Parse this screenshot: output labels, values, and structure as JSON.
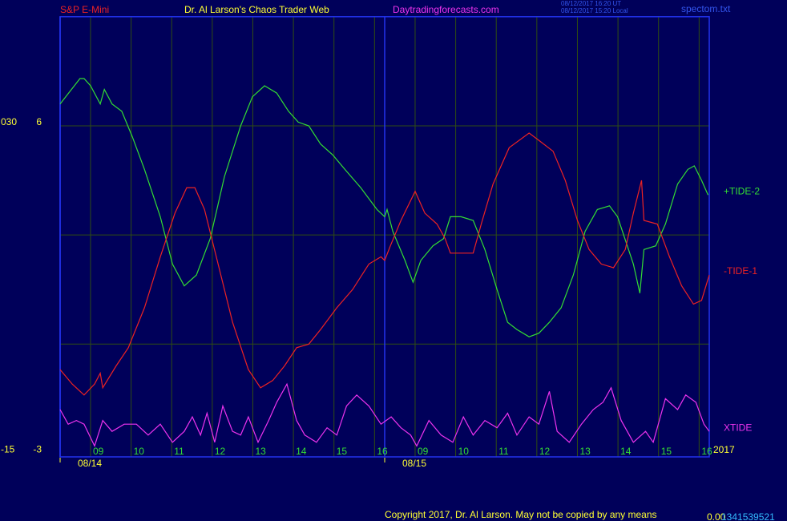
{
  "chart_data": {
    "type": "line",
    "header": {
      "symbol": "S&P E-Mini",
      "site_title": "Dr. Al Larson's Chaos Trader Web",
      "url": "Daytradingforecasts.com",
      "timestamp_ut": "08/12/2017 16:20 UT",
      "timestamp_local": "08/12/2017 15:20 Local",
      "file": "spectom.txt"
    },
    "footer": {
      "copyright": "Copyright 2017, Dr. Al Larson. May not be copied by any means",
      "counter_a": "0.00",
      "counter_b": "1341539521"
    },
    "year_label": "2017",
    "xlim": [
      0,
      16
    ],
    "xticks": [
      {
        "value": 0.75,
        "label": "09"
      },
      {
        "value": 1.75,
        "label": "10"
      },
      {
        "value": 2.75,
        "label": "11"
      },
      {
        "value": 3.75,
        "label": "12"
      },
      {
        "value": 4.75,
        "label": "13"
      },
      {
        "value": 5.75,
        "label": "14"
      },
      {
        "value": 6.75,
        "label": "15"
      },
      {
        "value": 7.75,
        "label": "16"
      },
      {
        "value": 8.75,
        "label": "09"
      },
      {
        "value": 9.75,
        "label": "10"
      },
      {
        "value": 10.75,
        "label": "11"
      },
      {
        "value": 11.75,
        "label": "12"
      },
      {
        "value": 12.75,
        "label": "13"
      },
      {
        "value": 13.75,
        "label": "14"
      },
      {
        "value": 14.75,
        "label": "15"
      },
      {
        "value": 15.75,
        "label": "16"
      }
    ],
    "day_labels": [
      {
        "value": 0,
        "label": "08/14"
      },
      {
        "value": 8,
        "label": "08/15"
      }
    ],
    "ylim": [
      -3.1,
      9
    ],
    "yticks": [
      6,
      -3
    ],
    "price_labels": [
      "030",
      "-15"
    ],
    "grid_y": [
      0,
      3,
      6
    ],
    "grid": true,
    "series": [
      {
        "name": "+TIDE-2",
        "color": "#33dd33",
        "x": [
          0,
          0.49,
          0.59,
          0.75,
          0.99,
          1.09,
          1.28,
          1.52,
          1.78,
          2.08,
          2.47,
          2.77,
          3.06,
          3.36,
          3.7,
          4.05,
          4.45,
          4.74,
          5.04,
          5.34,
          5.63,
          5.87,
          6.13,
          6.42,
          6.72,
          7.02,
          7.41,
          7.81,
          8,
          8.06,
          8.2,
          8.5,
          8.7,
          8.89,
          9.19,
          9.45,
          9.62,
          9.88,
          10.18,
          10.47,
          10.77,
          11.03,
          11.26,
          11.56,
          11.8,
          12.06,
          12.35,
          12.65,
          12.94,
          13.24,
          13.54,
          13.74,
          14.13,
          14.29,
          14.39,
          14.68,
          14.92,
          15.22,
          15.47,
          15.63,
          15.81,
          15.97
        ],
        "values": [
          6.6,
          7.3,
          7.3,
          7.1,
          6.6,
          7.0,
          6.6,
          6.4,
          5.7,
          4.8,
          3.5,
          2.2,
          1.6,
          1.9,
          2.9,
          4.6,
          6.0,
          6.8,
          7.1,
          6.9,
          6.4,
          6.1,
          6.0,
          5.5,
          5.2,
          4.8,
          4.3,
          3.7,
          3.5,
          3.7,
          3.1,
          2.3,
          1.7,
          2.3,
          2.7,
          2.9,
          3.5,
          3.5,
          3.4,
          2.6,
          1.5,
          0.6,
          0.4,
          0.2,
          0.3,
          0.6,
          1.0,
          1.9,
          3.1,
          3.7,
          3.8,
          3.5,
          2.2,
          1.4,
          2.6,
          2.7,
          3.3,
          4.4,
          4.8,
          4.9,
          4.5,
          4.1
        ]
      },
      {
        "name": "-TIDE-1",
        "color": "#ee2222",
        "x": [
          0,
          0.3,
          0.59,
          0.85,
          0.99,
          1.05,
          1.38,
          1.68,
          2.08,
          2.47,
          2.83,
          3.12,
          3.32,
          3.56,
          3.85,
          4.25,
          4.64,
          4.94,
          5.24,
          5.53,
          5.83,
          6.13,
          6.42,
          6.82,
          7.21,
          7.61,
          7.91,
          8,
          8.14,
          8.4,
          8.75,
          8.99,
          9.29,
          9.49,
          9.62,
          10.18,
          10.38,
          10.67,
          10.87,
          11.07,
          11.56,
          11.8,
          12.15,
          12.45,
          12.75,
          13.04,
          13.34,
          13.64,
          13.93,
          14.13,
          14.33,
          14.39,
          14.72,
          15.02,
          15.32,
          15.61,
          15.81,
          16
        ],
        "values": [
          -0.7,
          -1.1,
          -1.4,
          -1.1,
          -0.8,
          -1.2,
          -0.6,
          -0.1,
          1.0,
          2.4,
          3.6,
          4.3,
          4.3,
          3.7,
          2.4,
          0.6,
          -0.7,
          -1.2,
          -1.0,
          -0.6,
          -0.1,
          0.0,
          0.4,
          1.0,
          1.5,
          2.2,
          2.4,
          2.3,
          2.7,
          3.4,
          4.2,
          3.6,
          3.3,
          2.9,
          2.5,
          2.5,
          3.3,
          4.4,
          4.9,
          5.4,
          5.8,
          5.6,
          5.3,
          4.5,
          3.4,
          2.6,
          2.2,
          2.1,
          2.6,
          3.6,
          4.5,
          3.4,
          3.3,
          2.4,
          1.6,
          1.1,
          1.2,
          1.9
        ]
      },
      {
        "name": "XTIDE",
        "color": "#ee33ee",
        "x": [
          0,
          0.2,
          0.4,
          0.59,
          0.85,
          1.05,
          1.28,
          1.58,
          1.88,
          2.17,
          2.47,
          2.77,
          3.06,
          3.26,
          3.46,
          3.62,
          3.81,
          4.01,
          4.25,
          4.45,
          4.64,
          4.88,
          5.14,
          5.34,
          5.59,
          5.83,
          6.03,
          6.32,
          6.58,
          6.82,
          7.06,
          7.31,
          7.61,
          7.91,
          8.16,
          8.4,
          8.64,
          8.79,
          9.09,
          9.39,
          9.68,
          9.94,
          10.18,
          10.47,
          10.77,
          11.03,
          11.26,
          11.56,
          11.8,
          12.06,
          12.25,
          12.55,
          12.85,
          13.14,
          13.38,
          13.58,
          13.83,
          14.13,
          14.43,
          14.62,
          14.92,
          15.22,
          15.42,
          15.67,
          15.87,
          16
        ],
        "values": [
          -1.8,
          -2.2,
          -2.1,
          -2.2,
          -2.8,
          -2.1,
          -2.4,
          -2.2,
          -2.2,
          -2.5,
          -2.2,
          -2.7,
          -2.4,
          -2.0,
          -2.5,
          -1.9,
          -2.7,
          -1.7,
          -2.4,
          -2.5,
          -2.0,
          -2.7,
          -2.1,
          -1.6,
          -1.1,
          -2.1,
          -2.5,
          -2.7,
          -2.3,
          -2.5,
          -1.7,
          -1.4,
          -1.7,
          -2.2,
          -2.0,
          -2.3,
          -2.5,
          -2.8,
          -2.1,
          -2.5,
          -2.7,
          -2.0,
          -2.5,
          -2.1,
          -2.3,
          -1.9,
          -2.5,
          -2.0,
          -2.2,
          -1.3,
          -2.4,
          -2.7,
          -2.2,
          -1.8,
          -1.6,
          -1.2,
          -2.1,
          -2.7,
          -2.4,
          -2.7,
          -1.5,
          -1.8,
          -1.4,
          -1.6,
          -2.2,
          -2.4
        ]
      }
    ]
  }
}
